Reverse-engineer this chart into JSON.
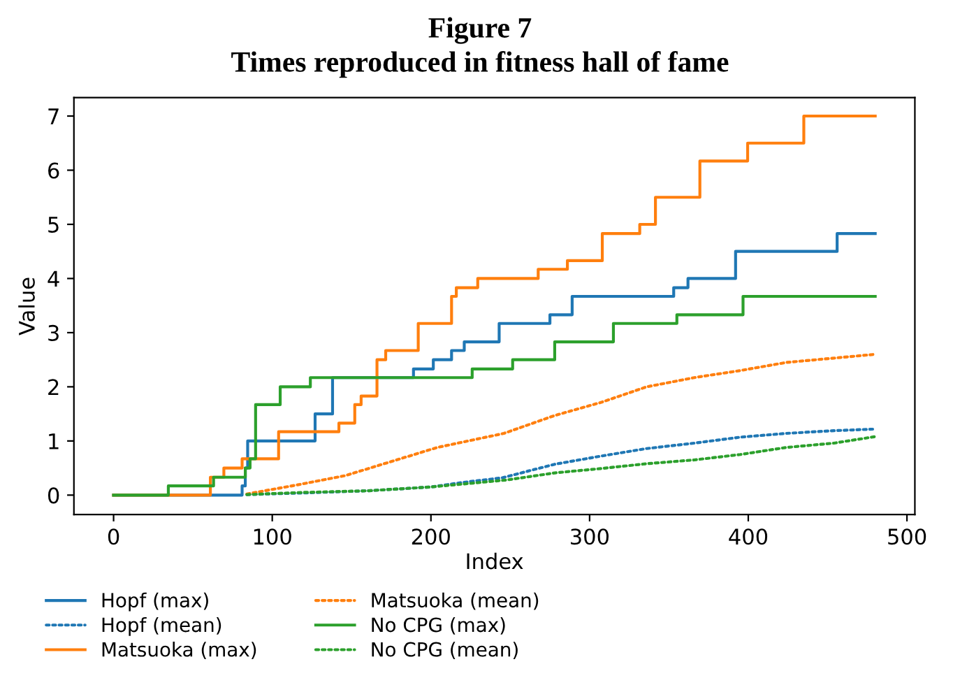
{
  "chart_data": {
    "type": "line",
    "title": "Figure 7",
    "subtitle": "Times reproduced in fitness hall of fame",
    "xlabel": "Index",
    "ylabel": "Value",
    "xlim": [
      -25,
      505
    ],
    "ylim": [
      -0.36,
      7.34
    ],
    "xticks": [
      0,
      100,
      200,
      300,
      400,
      500
    ],
    "yticks": [
      0,
      1,
      2,
      3,
      4,
      5,
      6,
      7
    ],
    "grid": false,
    "legend": "bottom",
    "series": [
      {
        "name": "Hopf (max)",
        "type": "step",
        "line_style": "solid",
        "color": "#1f77b4",
        "x": [
          0,
          81,
          83,
          84.5,
          127,
          138,
          189,
          201.5,
          213,
          221,
          243,
          275,
          289,
          353,
          362,
          392,
          456,
          480
        ],
        "values": [
          0,
          0.17,
          0.5,
          1.0,
          1.5,
          2.17,
          2.33,
          2.5,
          2.67,
          2.83,
          3.17,
          3.33,
          3.67,
          3.83,
          4.0,
          4.5,
          4.83,
          4.83
        ]
      },
      {
        "name": "Hopf (mean)",
        "type": "line",
        "line_style": "dotted",
        "color": "#1f77b4",
        "x": [
          84,
          120,
          160,
          200,
          219,
          245,
          278,
          307,
          336,
          366,
          395,
          424,
          454,
          480
        ],
        "values": [
          0.01,
          0.04,
          0.08,
          0.15,
          0.23,
          0.32,
          0.57,
          0.72,
          0.86,
          0.96,
          1.07,
          1.14,
          1.19,
          1.22
        ]
      },
      {
        "name": "Matsuoka (max)",
        "type": "step",
        "line_style": "solid",
        "color": "#ff7f0e",
        "x": [
          0,
          61,
          69.5,
          81,
          104,
          142,
          152,
          156,
          166,
          171.5,
          192,
          213,
          216,
          229.5,
          267.6,
          286,
          308,
          331.6,
          341.5,
          369.5,
          399.6,
          435,
          480
        ],
        "values": [
          0,
          0.33,
          0.5,
          0.67,
          1.17,
          1.33,
          1.67,
          1.83,
          2.5,
          2.67,
          3.17,
          3.67,
          3.83,
          4.0,
          4.17,
          4.33,
          4.83,
          5.0,
          5.5,
          6.17,
          6.5,
          7.0,
          7.0
        ]
      },
      {
        "name": "Matsuoka (mean)",
        "type": "line",
        "line_style": "dotted",
        "color": "#ff7f0e",
        "x": [
          84,
          116,
          146,
          175,
          204,
          246,
          278,
          307,
          336,
          366,
          395,
          424,
          454,
          480
        ],
        "values": [
          0.02,
          0.19,
          0.36,
          0.62,
          0.88,
          1.14,
          1.47,
          1.71,
          2.0,
          2.17,
          2.3,
          2.45,
          2.53,
          2.6
        ]
      },
      {
        "name": "No CPG (max)",
        "type": "step",
        "line_style": "solid",
        "color": "#2ca02c",
        "x": [
          0,
          34.5,
          63,
          83,
          86,
          89.5,
          105,
          124,
          226,
          251.5,
          278,
          315,
          355,
          396.7,
          480
        ],
        "values": [
          0,
          0.17,
          0.33,
          0.5,
          0.67,
          1.67,
          2.0,
          2.17,
          2.33,
          2.5,
          2.83,
          3.17,
          3.33,
          3.67,
          3.67
        ]
      },
      {
        "name": "No CPG (mean)",
        "type": "line",
        "line_style": "dotted",
        "color": "#2ca02c",
        "x": [
          84,
          120,
          160,
          200,
          248,
          278,
          307,
          336,
          366,
          395,
          424,
          454,
          480
        ],
        "values": [
          0.01,
          0.05,
          0.08,
          0.15,
          0.28,
          0.41,
          0.49,
          0.58,
          0.65,
          0.75,
          0.88,
          0.96,
          1.08
        ]
      }
    ]
  }
}
